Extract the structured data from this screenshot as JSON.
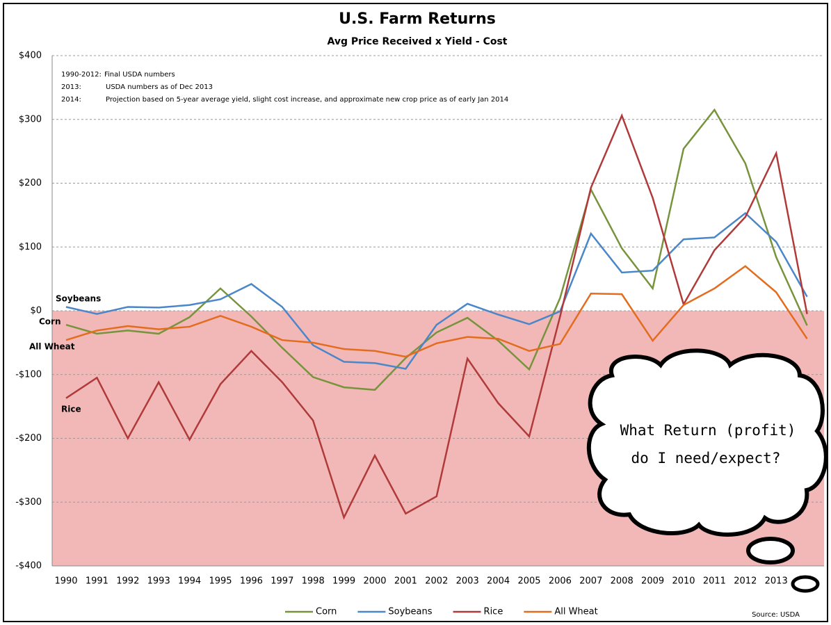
{
  "chart_data": {
    "type": "line",
    "title": "U.S. Farm Returns",
    "subtitle": "Avg Price Received x Yield - Cost",
    "notes": [
      {
        "label": "1990-2012:",
        "text": "Final USDA numbers"
      },
      {
        "label": "2013:",
        "text": "USDA numbers as of Dec 2013"
      },
      {
        "label": "2014:",
        "text": "Projection based on 5-year average yield, slight cost increase, and approximate new crop price as of early Jan 2014"
      }
    ],
    "categories": [
      "1990",
      "1991",
      "1992",
      "1993",
      "1994",
      "1995",
      "1996",
      "1997",
      "1998",
      "1999",
      "2000",
      "2001",
      "2002",
      "2003",
      "2004",
      "2005",
      "2006",
      "2007",
      "2008",
      "2009",
      "2010",
      "2011",
      "2012",
      "2013",
      null
    ],
    "series": [
      {
        "name": "Corn",
        "color": "#77933c",
        "values": [
          -22,
          -36,
          -31,
          -36,
          -10,
          35,
          -9,
          -58,
          -104,
          -120,
          -124,
          -74,
          -34,
          -11,
          -47,
          -92,
          20,
          190,
          98,
          35,
          254,
          315,
          231,
          84,
          -23
        ]
      },
      {
        "name": "Soybeans",
        "color": "#4a86c8",
        "values": [
          6,
          -5,
          6,
          5,
          9,
          18,
          42,
          6,
          -54,
          -80,
          -82,
          -91,
          -22,
          11,
          -6,
          -21,
          -1,
          121,
          60,
          63,
          112,
          115,
          153,
          108,
          22
        ]
      },
      {
        "name": "Rice",
        "color": "#b03a3a",
        "values": [
          -137,
          -105,
          -200,
          -112,
          -202,
          -115,
          -63,
          -112,
          -172,
          -324,
          -227,
          -318,
          -291,
          -75,
          -145,
          -197,
          -9,
          193,
          306,
          177,
          10,
          95,
          147,
          247,
          -5
        ]
      },
      {
        "name": "All Wheat",
        "color": "#e36c1e",
        "values": [
          -46,
          -31,
          -24,
          -29,
          -25,
          -8,
          -25,
          -46,
          -50,
          -60,
          -63,
          -72,
          -51,
          -41,
          -44,
          -63,
          -52,
          27,
          26,
          -47,
          9,
          35,
          70,
          29,
          -44
        ]
      }
    ],
    "ylim": [
      -400,
      400
    ],
    "yticks": [
      {
        "value": -400,
        "label": "-$400"
      },
      {
        "value": -300,
        "label": "-$300"
      },
      {
        "value": -200,
        "label": "-$200"
      },
      {
        "value": -100,
        "label": "-$100"
      },
      {
        "value": 0,
        "label": "$0"
      },
      {
        "value": 100,
        "label": "$100"
      },
      {
        "value": 200,
        "label": "$200"
      },
      {
        "value": 300,
        "label": "$300"
      },
      {
        "value": 400,
        "label": "$400"
      }
    ],
    "grid": true,
    "negative_shading": "#f2b8b8",
    "callout": [
      "What Return (profit)",
      "do I need/expect?"
    ],
    "source": "Source: USDA"
  }
}
